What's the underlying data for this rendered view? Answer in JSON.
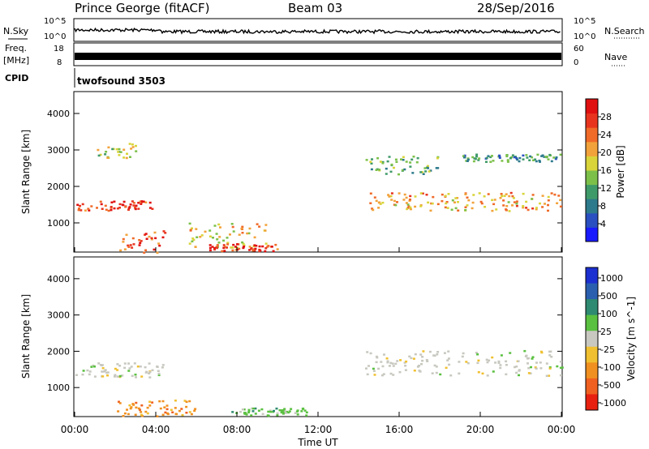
{
  "header": {
    "station": "Prince George (fitACF)",
    "beam": "Beam 03",
    "date": "28/Sep/2016"
  },
  "panels": {
    "nsky": {
      "left_label": "N.Sky",
      "right_label": "N.Search",
      "left_ticks": [
        "10^5",
        "10^0"
      ],
      "right_ticks": [
        "10^5",
        "10^0"
      ]
    },
    "freq": {
      "left_label_1": "Freq.",
      "left_label_2": "[MHz]",
      "right_label": "Nave",
      "left_ticks": [
        "18",
        "8"
      ],
      "right_ticks": [
        "60",
        "0"
      ]
    },
    "cpid": {
      "label": "CPID",
      "text": "twofsound 3503"
    }
  },
  "chart_data": [
    {
      "type": "heatmap",
      "name": "power",
      "ylabel": "Slant Range [km]",
      "ylim": [
        200,
        4600
      ],
      "yticks": [
        "1000",
        "2000",
        "3000",
        "4000"
      ],
      "xlim_hours": [
        0,
        24
      ],
      "colorbar": {
        "label": "Power [dB]",
        "ticks": [
          "4",
          "8",
          "12",
          "16",
          "20",
          "24",
          "28"
        ],
        "colors": [
          "#1a1aff",
          "#2a4fc0",
          "#2d7a8c",
          "#3f9a6a",
          "#7cc04a",
          "#d8d43a",
          "#f2a23a",
          "#f06a28",
          "#e8341e",
          "#e01010"
        ]
      },
      "features": [
        {
          "t0": 0.0,
          "t1": 3.8,
          "range_center": 1500,
          "range_width": 300,
          "power": 24
        },
        {
          "t0": 1.0,
          "t1": 3.0,
          "range_center": 3000,
          "range_width": 400,
          "power": 14
        },
        {
          "t0": 2.2,
          "t1": 4.5,
          "range_center": 500,
          "range_width": 600,
          "power": 22
        },
        {
          "t0": 5.5,
          "t1": 9.5,
          "range_center": 700,
          "range_width": 700,
          "power": 16
        },
        {
          "t0": 6.5,
          "t1": 10.0,
          "range_center": 350,
          "range_width": 200,
          "power": 24
        },
        {
          "t0": 14.5,
          "t1": 24.0,
          "range_center": 1600,
          "range_width": 500,
          "power": 18
        },
        {
          "t0": 14.3,
          "t1": 18.0,
          "range_center": 2600,
          "range_width": 500,
          "power": 10
        },
        {
          "t0": 19.0,
          "t1": 24.0,
          "range_center": 2800,
          "range_width": 200,
          "power": 8
        }
      ]
    },
    {
      "type": "heatmap",
      "name": "velocity",
      "ylabel": "Slant Range [km]",
      "ylim": [
        200,
        4600
      ],
      "yticks": [
        "1000",
        "2000",
        "3000",
        "4000"
      ],
      "xlim_hours": [
        0,
        24
      ],
      "xticks": [
        "00:00",
        "04:00",
        "08:00",
        "12:00",
        "16:00",
        "20:00",
        "00:00"
      ],
      "xlabel": "Time UT",
      "colorbar": {
        "label": "Velocity [m s^-1]",
        "ticks": [
          "1000",
          "500",
          "100",
          "25",
          "-25",
          "-100",
          "-500",
          "-1000"
        ],
        "colors": [
          "#1c2fd0",
          "#2a5fb0",
          "#2e8a70",
          "#5ac040",
          "#c8c8c0",
          "#f0c030",
          "#f09020",
          "#f06020",
          "#e82010"
        ]
      },
      "features": [
        {
          "t0": 0.0,
          "t1": 4.5,
          "range_center": 1500,
          "range_width": 400,
          "velocity": 0
        },
        {
          "t0": 2.0,
          "t1": 6.0,
          "range_center": 450,
          "range_width": 450,
          "velocity": -250
        },
        {
          "t0": 7.5,
          "t1": 11.5,
          "range_center": 350,
          "range_width": 200,
          "velocity": 150
        },
        {
          "t0": 14.3,
          "t1": 24.0,
          "range_center": 1700,
          "range_width": 700,
          "velocity": 0
        }
      ]
    }
  ]
}
